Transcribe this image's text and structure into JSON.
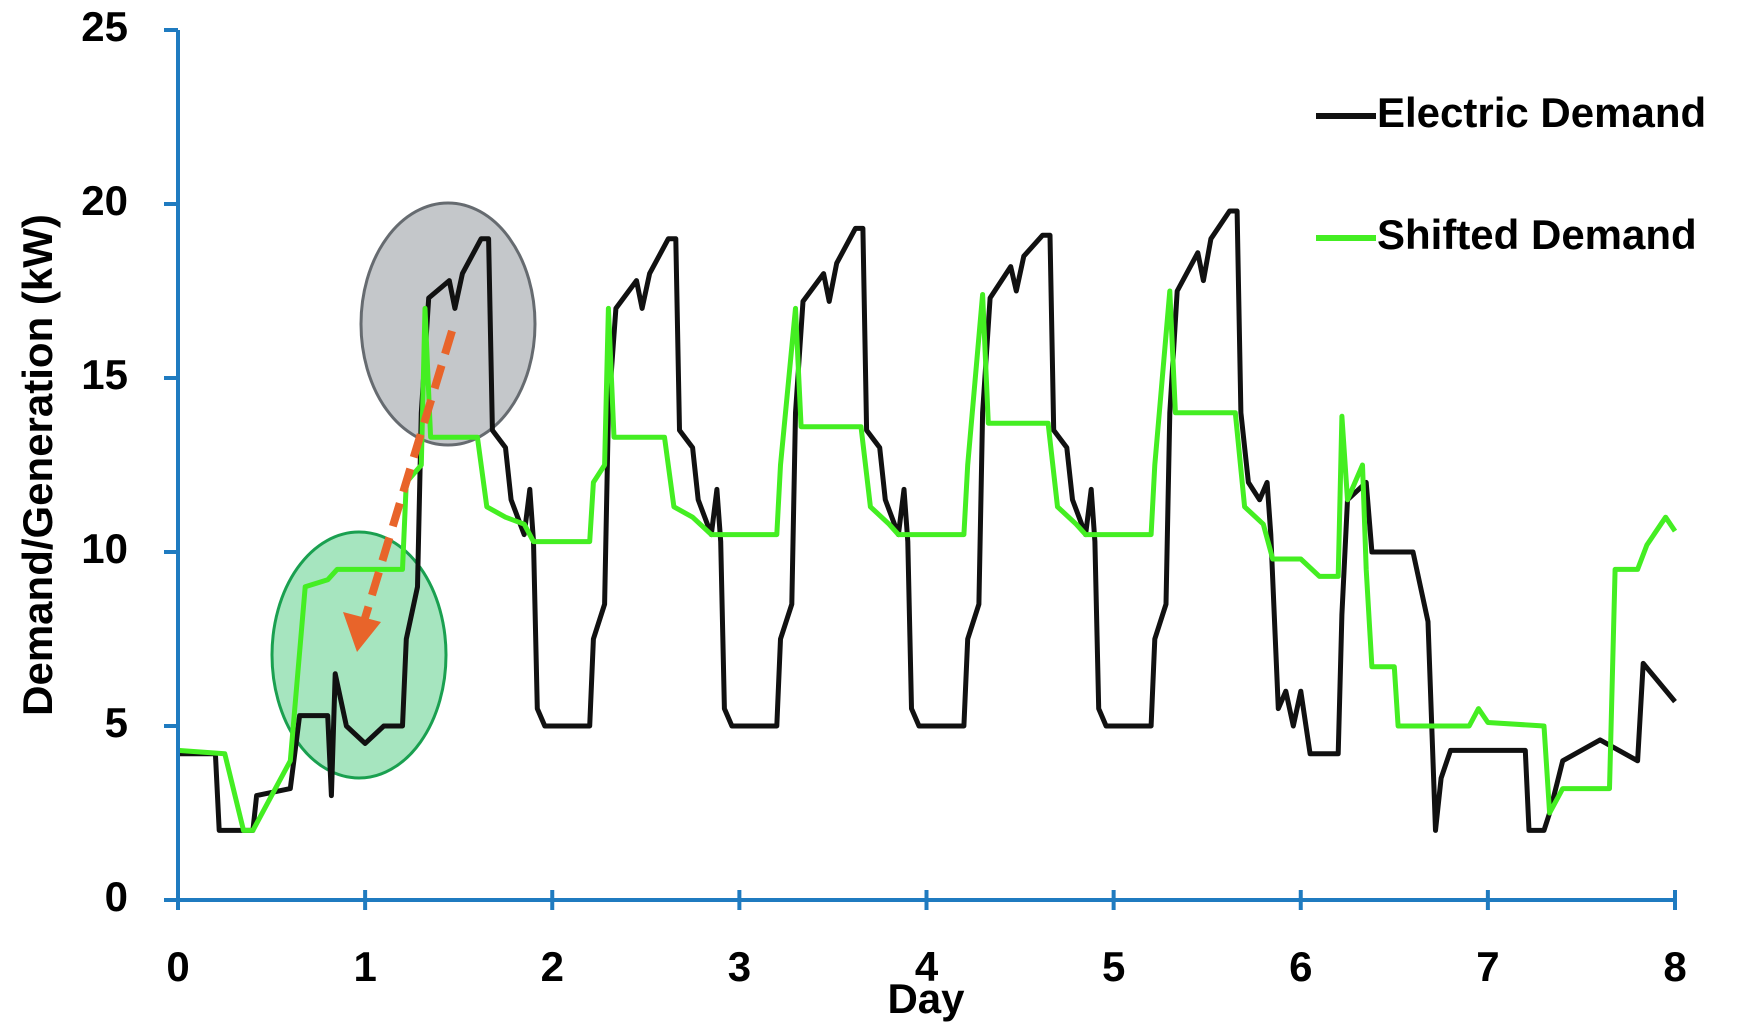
{
  "chart_data": {
    "type": "line",
    "xlabel": "Day",
    "ylabel": "Demand/Generation (kW)",
    "xlim": [
      0,
      8
    ],
    "xticks": [
      0,
      1,
      2,
      3,
      4,
      5,
      6,
      7,
      8
    ],
    "ylim": [
      0,
      25
    ],
    "yticks": [
      0,
      5,
      10,
      15,
      20,
      25
    ],
    "axis_color": "#1f7bc0",
    "legend": "upper right",
    "series": [
      {
        "name": "Electric Demand",
        "color": "#111111",
        "x": [
          0,
          0.2,
          0.22,
          0.4,
          0.42,
          0.6,
          0.65,
          0.8,
          0.82,
          0.84,
          0.9,
          1.0,
          1.1,
          1.2,
          1.22,
          1.28,
          1.3,
          1.34,
          1.45,
          1.48,
          1.52,
          1.62,
          1.66,
          1.68,
          1.75,
          1.78,
          1.85,
          1.88,
          1.9,
          1.92,
          1.96,
          2.2,
          2.22,
          2.28,
          2.3,
          2.34,
          2.45,
          2.48,
          2.52,
          2.62,
          2.66,
          2.68,
          2.75,
          2.78,
          2.85,
          2.88,
          2.9,
          2.92,
          2.96,
          3.2,
          3.22,
          3.28,
          3.3,
          3.34,
          3.45,
          3.48,
          3.52,
          3.62,
          3.66,
          3.68,
          3.75,
          3.78,
          3.85,
          3.88,
          3.9,
          3.92,
          3.96,
          4.2,
          4.22,
          4.28,
          4.3,
          4.34,
          4.45,
          4.48,
          4.52,
          4.62,
          4.66,
          4.68,
          4.75,
          4.78,
          4.85,
          4.88,
          4.9,
          4.92,
          4.96,
          5.2,
          5.22,
          5.28,
          5.3,
          5.34,
          5.45,
          5.48,
          5.52,
          5.62,
          5.66,
          5.68,
          5.72,
          5.78,
          5.82,
          5.84,
          5.88,
          5.92,
          5.96,
          6.0,
          6.05,
          6.2,
          6.22,
          6.25,
          6.35,
          6.38,
          6.6,
          6.68,
          6.72,
          6.75,
          6.8,
          7.2,
          7.22,
          7.3,
          7.33,
          7.4,
          7.6,
          7.8,
          7.83,
          8.0
        ],
        "values": [
          4.2,
          4.2,
          2,
          2,
          3,
          3.2,
          5.3,
          5.3,
          3,
          6.5,
          5,
          4.5,
          5,
          5,
          7.5,
          9,
          14,
          17.3,
          17.8,
          17,
          18,
          19,
          19,
          13.5,
          13,
          11.5,
          10.5,
          11.8,
          10.3,
          5.5,
          5,
          5,
          7.5,
          8.5,
          14,
          17,
          17.8,
          17,
          18,
          19,
          19,
          13.5,
          13,
          11.5,
          10.5,
          11.8,
          10.3,
          5.5,
          5,
          5,
          7.5,
          8.5,
          14,
          17.2,
          18,
          17.2,
          18.3,
          19.3,
          19.3,
          13.5,
          13,
          11.5,
          10.5,
          11.8,
          10.3,
          5.5,
          5,
          5,
          7.5,
          8.5,
          14,
          17.3,
          18.2,
          17.5,
          18.5,
          19.1,
          19.1,
          13.5,
          13,
          11.5,
          10.5,
          11.8,
          10.3,
          5.5,
          5,
          5,
          7.5,
          8.5,
          14,
          17.5,
          18.6,
          17.8,
          19,
          19.8,
          19.8,
          14,
          12,
          11.5,
          12,
          10.5,
          5.5,
          6,
          5,
          6,
          4.2,
          4.2,
          8.2,
          11.5,
          12,
          10,
          10,
          8,
          2,
          3.5,
          4.3,
          4.3,
          2,
          2,
          2.5,
          4,
          4.6,
          4,
          6.8,
          5.7
        ]
      },
      {
        "name": "Shifted Demand",
        "color": "#44ee22",
        "x": [
          0,
          0.25,
          0.35,
          0.4,
          0.5,
          0.6,
          0.68,
          0.8,
          0.85,
          1.0,
          1.2,
          1.22,
          1.3,
          1.32,
          1.35,
          1.6,
          1.65,
          1.75,
          1.85,
          1.9,
          2.2,
          2.22,
          2.28,
          2.3,
          2.33,
          2.6,
          2.65,
          2.75,
          2.85,
          3.2,
          3.22,
          3.3,
          3.33,
          3.65,
          3.7,
          3.8,
          3.85,
          4.2,
          4.22,
          4.3,
          4.33,
          4.65,
          4.7,
          4.8,
          4.85,
          5.2,
          5.22,
          5.3,
          5.33,
          5.65,
          5.7,
          5.8,
          5.85,
          6.0,
          6.1,
          6.2,
          6.22,
          6.25,
          6.33,
          6.35,
          6.38,
          6.5,
          6.52,
          6.9,
          6.95,
          7.0,
          7.3,
          7.33,
          7.4,
          7.65,
          7.68,
          7.8,
          7.85,
          7.95,
          8.0
        ],
        "values": [
          4.3,
          4.2,
          2,
          2,
          3,
          4,
          9,
          9.2,
          9.5,
          9.5,
          9.5,
          12,
          12.5,
          17,
          13.3,
          13.3,
          11.3,
          11,
          10.8,
          10.3,
          10.3,
          12,
          12.5,
          17,
          13.3,
          13.3,
          11.3,
          11,
          10.5,
          10.5,
          12.5,
          17,
          13.6,
          13.6,
          11.3,
          10.8,
          10.5,
          10.5,
          12.5,
          17.4,
          13.7,
          13.7,
          11.3,
          10.8,
          10.5,
          10.5,
          12.5,
          17.5,
          14,
          14,
          11.3,
          10.8,
          9.8,
          9.8,
          9.3,
          9.3,
          13.9,
          11.5,
          12.5,
          9.5,
          6.7,
          6.7,
          5,
          5,
          5.5,
          5.1,
          5,
          2.5,
          3.2,
          3.2,
          9.5,
          9.5,
          10.2,
          11,
          10.6
        ]
      }
    ]
  }
}
